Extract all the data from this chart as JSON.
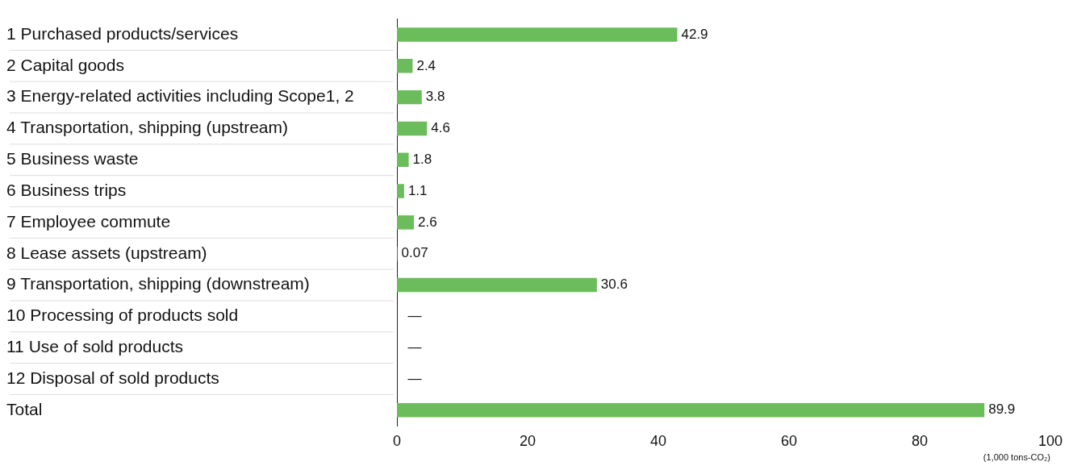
{
  "chart_data": {
    "type": "bar",
    "orientation": "horizontal",
    "categories": [
      "1 Purchased products/services",
      "2 Capital goods",
      "3 Energy-related activities including Scope1, 2",
      "4 Transportation, shipping (upstream)",
      "5 Business waste",
      "6 Business trips",
      "7 Employee commute",
      "8 Lease assets (upstream)",
      "9 Transportation, shipping (downstream)",
      "10 Processing of products sold",
      "11 Use of sold products",
      "12 Disposal of sold products",
      "Total"
    ],
    "values": [
      42.9,
      2.4,
      3.8,
      4.6,
      1.8,
      1.1,
      2.6,
      0.07,
      30.6,
      null,
      null,
      null,
      89.9
    ],
    "value_labels": [
      "42.9",
      "2.4",
      "3.8",
      "4.6",
      "1.8",
      "1.1",
      "2.6",
      "0.07",
      "30.6",
      "—",
      "—",
      "—",
      "89.9"
    ],
    "color": "#6abd5a",
    "xlim": [
      0,
      100
    ],
    "xticks": [
      0,
      20,
      40,
      60,
      80,
      100
    ],
    "xlabel": "(1,000 tons-CO₂)",
    "grid": false
  }
}
